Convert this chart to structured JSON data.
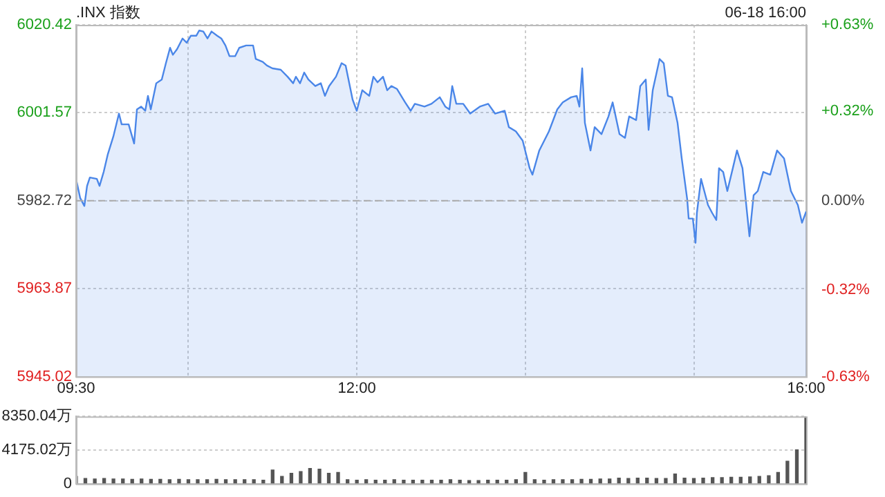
{
  "chart_data": [
    {
      "type": "area",
      "title": ".INX 指数",
      "annotations": [
        "06-18 16:00"
      ],
      "x": [
        9.5,
        9.537,
        9.574,
        9.598,
        9.623,
        9.685,
        9.709,
        9.746,
        9.783,
        9.832,
        9.882,
        9.906,
        9.968,
        10.017,
        10.042,
        10.079,
        10.116,
        10.14,
        10.165,
        10.214,
        10.263,
        10.3,
        10.337,
        10.362,
        10.399,
        10.448,
        10.485,
        10.522,
        10.571,
        10.596,
        10.633,
        10.67,
        10.706,
        10.756,
        10.793,
        10.83,
        10.866,
        10.916,
        10.953,
        11.014,
        11.076,
        11.1,
        11.162,
        11.199,
        11.248,
        11.322,
        11.383,
        11.433,
        11.457,
        11.494,
        11.531,
        11.568,
        11.63,
        11.679,
        11.716,
        11.753,
        11.814,
        11.864,
        11.9,
        11.962,
        11.999,
        12.048,
        12.11,
        12.147,
        12.184,
        12.233,
        12.27,
        12.307,
        12.356,
        12.43,
        12.479,
        12.516,
        12.602,
        12.664,
        12.738,
        12.787,
        12.824,
        12.849,
        12.885,
        12.947,
        13.009,
        13.095,
        13.169,
        13.23,
        13.316,
        13.353,
        13.415,
        13.476,
        13.538,
        13.563,
        13.624,
        13.71,
        13.784,
        13.833,
        13.907,
        13.957,
        13.981,
        14.006,
        14.03,
        14.08,
        14.117,
        14.178,
        14.24,
        14.277,
        14.338,
        14.387,
        14.424,
        14.486,
        14.523,
        14.572,
        14.597,
        14.634,
        14.695,
        14.732,
        14.769,
        14.806,
        14.855,
        14.892,
        14.941,
        14.954,
        14.991,
        15.015,
        15.027,
        15.064,
        15.126,
        15.163,
        15.2,
        15.224,
        15.261,
        15.298,
        15.347,
        15.384,
        15.433,
        15.495,
        15.532,
        15.569,
        15.618,
        15.68,
        15.741,
        15.803,
        15.864,
        15.926,
        15.963,
        16.0
      ],
      "series": [
        {
          "color": "#4a86e8",
          "values": [
            5987.4,
            5983.3,
            5981.6,
            5985.9,
            5987.7,
            5987.4,
            5985.9,
            5988.9,
            5992.7,
            5996.5,
            6001.4,
            5999.1,
            5999.1,
            5995.0,
            6002.3,
            6002.9,
            6002.0,
            6005.2,
            6002.3,
            6007.9,
            6008.7,
            6012.2,
            6015.5,
            6014.0,
            6015.2,
            6017.5,
            6016.6,
            6018.1,
            6018.1,
            6019.2,
            6019.0,
            6017.5,
            6019.0,
            6018.1,
            6017.5,
            6016.0,
            6013.7,
            6013.7,
            6015.5,
            6016.0,
            6016.0,
            6013.1,
            6012.5,
            6011.7,
            6011.1,
            6010.8,
            6009.3,
            6007.9,
            6009.3,
            6007.9,
            6010.2,
            6008.7,
            6007.3,
            6007.9,
            6005.2,
            6007.3,
            6009.3,
            6012.2,
            6011.7,
            6004.4,
            6002.0,
            6006.4,
            6005.2,
            6009.3,
            6008.1,
            6009.3,
            6006.4,
            6007.3,
            6006.7,
            6003.8,
            6002.0,
            6003.5,
            6002.9,
            6003.5,
            6004.9,
            6002.9,
            6002.3,
            6007.3,
            6003.5,
            6003.5,
            6001.4,
            6002.9,
            6003.5,
            6001.4,
            6002.0,
            5998.5,
            5997.6,
            5995.6,
            5989.7,
            5988.3,
            5993.5,
            5997.6,
            6002.3,
            6003.8,
            6004.9,
            6005.2,
            6002.9,
            6011.1,
            5999.4,
            5993.5,
            5998.5,
            5997.0,
            6000.8,
            6003.8,
            5997.0,
            5996.2,
            6000.8,
            6000.0,
            6007.3,
            6008.7,
            5997.9,
            6006.4,
            6013.1,
            6012.2,
            6005.2,
            6004.9,
            5999.4,
            5991.8,
            5983.0,
            5978.9,
            5978.9,
            5973.7,
            5980.1,
            5987.4,
            5981.8,
            5980.1,
            5978.6,
            5989.7,
            5988.9,
            5984.8,
            5989.7,
            5993.5,
            5989.7,
            5975.1,
            5983.9,
            5984.8,
            5988.9,
            5988.3,
            5993.5,
            5991.8,
            5984.8,
            5981.8,
            5978.0,
            5980.4
          ]
        }
      ],
      "xlim": [
        9.5,
        16
      ],
      "xticks": [
        {
          "value": 9.5,
          "label": "09:30"
        },
        {
          "value": 10.5,
          "label": null
        },
        {
          "value": 12,
          "label": "12:00"
        },
        {
          "value": 13.5,
          "label": null
        },
        {
          "value": 15,
          "label": null
        },
        {
          "value": 16,
          "label": "16:00"
        }
      ],
      "ylim": [
        5945.02,
        6020.42
      ],
      "yticks": [
        5945.02,
        5963.87,
        5982.72,
        6001.57,
        6020.42
      ],
      "y2lim": [
        -0.63,
        0.63
      ],
      "y2ticks": [
        {
          "value": -0.63,
          "label": "-0.63%"
        },
        {
          "value": -0.32,
          "label": "-0.32%"
        },
        {
          "value": 0,
          "label": "0.00%"
        },
        {
          "value": 0.32,
          "label": "+0.32%"
        },
        {
          "value": 0.63,
          "label": "+0.63%"
        }
      ],
      "ref_lines": [
        {
          "axis": "y",
          "value": 5982.72,
          "line_style": "dashed",
          "color": "#aaaaaa"
        }
      ],
      "grid": true
    },
    {
      "type": "bar",
      "color": "#555555",
      "tick_labels": "y",
      "grid": "y",
      "x": [
        9.5,
        9.583,
        9.667,
        9.75,
        9.833,
        9.917,
        10,
        10.083,
        10.167,
        10.25,
        10.333,
        10.417,
        10.5,
        10.583,
        10.667,
        10.75,
        10.833,
        10.917,
        11,
        11.083,
        11.167,
        11.25,
        11.333,
        11.417,
        11.5,
        11.583,
        11.667,
        11.75,
        11.833,
        11.917,
        12,
        12.083,
        12.167,
        12.25,
        12.333,
        12.417,
        12.5,
        12.583,
        12.667,
        12.75,
        12.833,
        12.917,
        13,
        13.083,
        13.167,
        13.25,
        13.333,
        13.417,
        13.5,
        13.583,
        13.667,
        13.75,
        13.833,
        13.917,
        14,
        14.083,
        14.167,
        14.25,
        14.333,
        14.417,
        14.5,
        14.583,
        14.667,
        14.75,
        14.833,
        14.917,
        15,
        15.083,
        15.167,
        15.25,
        15.333,
        15.417,
        15.5,
        15.583,
        15.667,
        15.75,
        15.833,
        15.917,
        16
      ],
      "values": [
        900,
        650,
        600,
        650,
        600,
        600,
        550,
        600,
        550,
        550,
        500,
        550,
        500,
        500,
        500,
        550,
        500,
        500,
        500,
        500,
        450,
        1700,
        900,
        1300,
        1500,
        1900,
        1800,
        1300,
        1400,
        500,
        450,
        500,
        450,
        450,
        500,
        450,
        450,
        450,
        450,
        450,
        500,
        450,
        400,
        400,
        450,
        450,
        450,
        500,
        1400,
        500,
        450,
        500,
        500,
        500,
        550,
        550,
        600,
        600,
        700,
        650,
        700,
        700,
        650,
        650,
        1200,
        700,
        650,
        700,
        750,
        750,
        800,
        800,
        850,
        900,
        1000,
        1400,
        2800,
        4200,
        8350.04
      ],
      "xlim": [
        9.5,
        16
      ],
      "ylim": [
        0,
        8350.04
      ],
      "yticks": [
        0,
        {
          "value": 4175.02,
          "label": "4175.02万"
        },
        {
          "value": 8350.04,
          "label": "8350.04万"
        }
      ]
    }
  ]
}
